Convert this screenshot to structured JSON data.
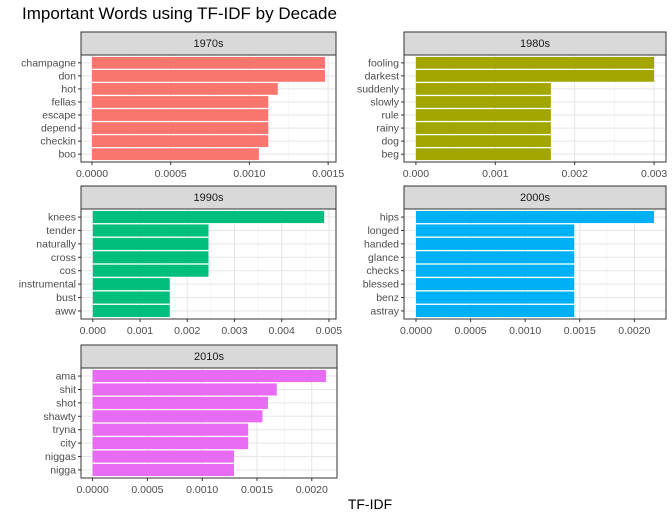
{
  "chart_data": {
    "type": "bar",
    "orientation": "horizontal",
    "title": "Important Words using TF-IDF by Decade",
    "xlabel": "TF-IDF",
    "ylabel": "",
    "grid": true,
    "legend": "none",
    "panels": [
      {
        "name": "1970s",
        "color": "#F8766D",
        "categories": [
          "champagne",
          "don",
          "hot",
          "fellas",
          "escape",
          "depend",
          "checkin",
          "boo"
        ],
        "values": [
          0.00148,
          0.00148,
          0.00118,
          0.00112,
          0.00112,
          0.00112,
          0.00112,
          0.00106
        ],
        "xlim": [
          -7e-05,
          0.00155
        ],
        "ticks": [
          0,
          0.0005,
          0.001,
          0.0015
        ],
        "tick_labels": [
          "0.0000",
          "0.0005",
          "0.0010",
          "0.0015"
        ]
      },
      {
        "name": "1980s",
        "color": "#A3A500",
        "categories": [
          "fooling",
          "darkest",
          "suddenly",
          "slowly",
          "rule",
          "rainy",
          "dog",
          "beg"
        ],
        "values": [
          0.003,
          0.003,
          0.0017,
          0.0017,
          0.0017,
          0.0017,
          0.0017,
          0.0017
        ],
        "xlim": [
          -0.00015,
          0.00315
        ],
        "ticks": [
          0,
          0.001,
          0.002,
          0.003
        ],
        "tick_labels": [
          "0.000",
          "0.001",
          "0.002",
          "0.003"
        ]
      },
      {
        "name": "1990s",
        "color": "#00BF7D",
        "categories": [
          "knees",
          "tender",
          "naturally",
          "cross",
          "cos",
          "instrumental",
          "bust",
          "aww"
        ],
        "values": [
          0.0049,
          0.00245,
          0.00245,
          0.00245,
          0.00245,
          0.00163,
          0.00163,
          0.00163
        ],
        "xlim": [
          -0.00025,
          0.00515
        ],
        "ticks": [
          0,
          0.001,
          0.002,
          0.003,
          0.004,
          0.005
        ],
        "tick_labels": [
          "0.000",
          "0.001",
          "0.002",
          "0.003",
          "0.004",
          "0.005"
        ]
      },
      {
        "name": "2000s",
        "color": "#00B0F6",
        "categories": [
          "hips",
          "longed",
          "handed",
          "glance",
          "checks",
          "blessed",
          "benz",
          "astray"
        ],
        "values": [
          0.00218,
          0.00145,
          0.00145,
          0.00145,
          0.00145,
          0.00145,
          0.00145,
          0.00145
        ],
        "xlim": [
          -0.00011,
          0.00229
        ],
        "ticks": [
          0,
          0.0005,
          0.001,
          0.0015,
          0.002
        ],
        "tick_labels": [
          "0.0000",
          "0.0005",
          "0.0010",
          "0.0015",
          "0.0020"
        ]
      },
      {
        "name": "2010s",
        "color": "#E76BF3",
        "categories": [
          "ama",
          "shit",
          "shot",
          "shawty",
          "tryna",
          "city",
          "niggas",
          "nigga"
        ],
        "values": [
          0.00213,
          0.00168,
          0.0016,
          0.00155,
          0.00142,
          0.00142,
          0.00129,
          0.00129
        ],
        "xlim": [
          -0.000106,
          0.00223
        ],
        "ticks": [
          0,
          0.0005,
          0.001,
          0.0015,
          0.002
        ],
        "tick_labels": [
          "0.0000",
          "0.0005",
          "0.0010",
          "0.0015",
          "0.0020"
        ]
      }
    ]
  }
}
